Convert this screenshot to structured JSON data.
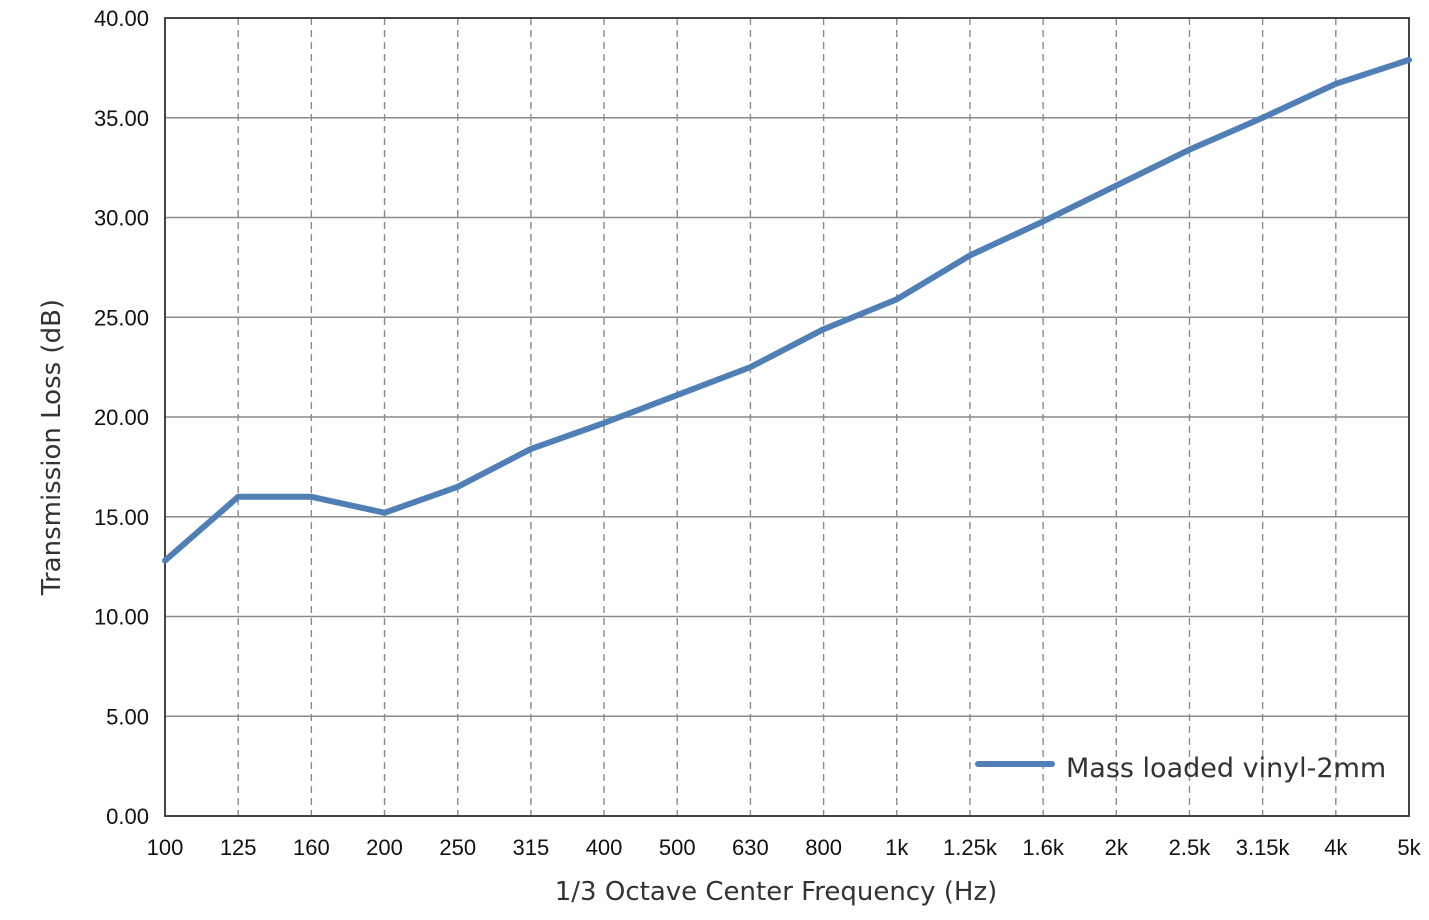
{
  "chart_data": {
    "type": "line",
    "title": "",
    "xlabel": "1/3 Octave Center Frequency (Hz)",
    "ylabel": "Transmission Loss (dB)",
    "categories": [
      "100",
      "125",
      "160",
      "200",
      "250",
      "315",
      "400",
      "500",
      "630",
      "800",
      "1k",
      "1.25k",
      "1.6k",
      "2k",
      "2.5k",
      "3.15k",
      "4k",
      "5k"
    ],
    "ylim": [
      0,
      40
    ],
    "yticks": [
      "0.00",
      "5.00",
      "10.00",
      "15.00",
      "20.00",
      "25.00",
      "30.00",
      "35.00",
      "40.00"
    ],
    "grid": {
      "horizontal": "solid",
      "vertical": "dashed"
    },
    "legend_position": "bottom-right",
    "series": [
      {
        "name": "Mass loaded vinyl-2mm",
        "color": "#4f7fb5",
        "values": [
          12.8,
          16.0,
          16.0,
          15.2,
          16.5,
          18.4,
          19.7,
          21.1,
          22.5,
          24.4,
          25.9,
          28.1,
          29.8,
          31.6,
          33.4,
          35.0,
          36.7,
          37.9
        ]
      }
    ]
  }
}
